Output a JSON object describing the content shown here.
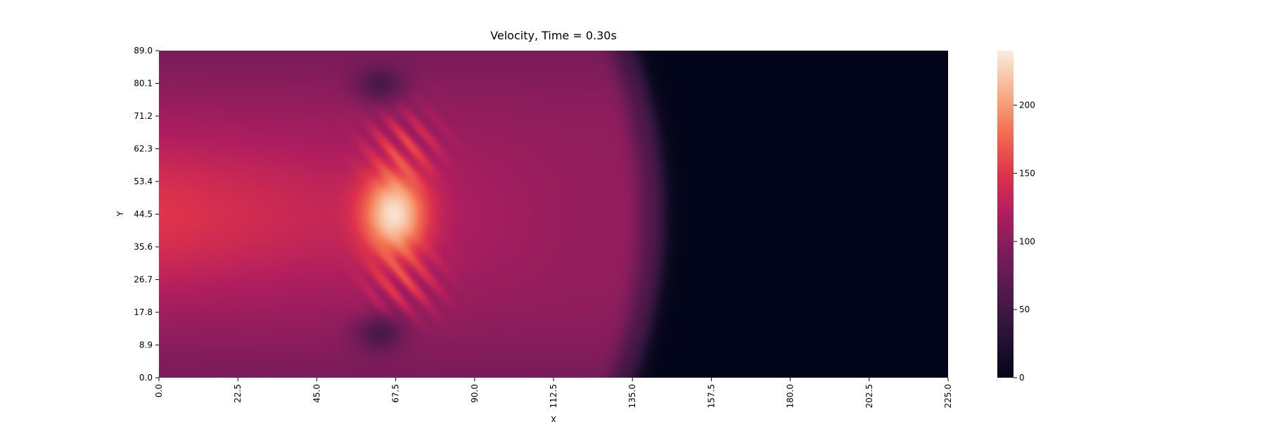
{
  "chart_data": {
    "type": "heatmap",
    "title": "Velocity, Time = 0.30s",
    "xlabel": "X",
    "ylabel": "Y",
    "xlim": [
      0.0,
      225.0
    ],
    "ylim": [
      0.0,
      89.0
    ],
    "x_ticks": [
      "0.0",
      "22.5",
      "45.0",
      "67.5",
      "90.0",
      "112.5",
      "135.0",
      "157.5",
      "180.0",
      "202.5",
      "225.0"
    ],
    "y_ticks": [
      "0.0",
      "8.9",
      "17.8",
      "26.7",
      "35.6",
      "44.5",
      "53.4",
      "62.3",
      "71.2",
      "80.1",
      "89.0"
    ],
    "colorbar": {
      "min": 0,
      "max": 240,
      "ticks": [
        "0",
        "50",
        "100",
        "150",
        "200"
      ],
      "tick_values": [
        0,
        50,
        100,
        150,
        200
      ],
      "colormap": "rocket"
    },
    "field": {
      "shock_front_x_center": 143,
      "shock_front_x_edge": 135,
      "region_right_of_front_value": 0,
      "region_behind_front_value": 105,
      "inflow_core_value": 150,
      "jet_peak_value": 235,
      "jet_peak_position": [
        67,
        44.5
      ],
      "low_velocity_pockets": [
        {
          "x": 63,
          "y": 80,
          "value": 55
        },
        {
          "x": 63,
          "y": 12,
          "value": 55
        }
      ]
    }
  }
}
